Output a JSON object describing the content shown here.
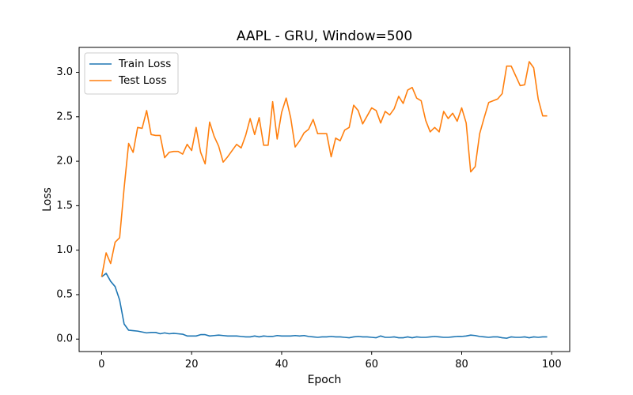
{
  "chart_data": {
    "type": "line",
    "title": "AAPL - GRU, Window=500",
    "xlabel": "Epoch",
    "ylabel": "Loss",
    "xlim": [
      -5,
      104
    ],
    "ylim": [
      -0.14,
      3.28
    ],
    "xticks": [
      0,
      20,
      40,
      60,
      80,
      100
    ],
    "yticks": [
      0.0,
      0.5,
      1.0,
      1.5,
      2.0,
      2.5,
      3.0
    ],
    "xtick_labels": [
      "0",
      "20",
      "40",
      "60",
      "80",
      "100"
    ],
    "ytick_labels": [
      "0.0",
      "0.5",
      "1.0",
      "1.5",
      "2.0",
      "2.5",
      "3.0"
    ],
    "grid": false,
    "legend_position": "top-left",
    "x": [
      0,
      1,
      2,
      3,
      4,
      5,
      6,
      7,
      8,
      9,
      10,
      11,
      12,
      13,
      14,
      15,
      16,
      17,
      18,
      19,
      20,
      21,
      22,
      23,
      24,
      25,
      26,
      27,
      28,
      29,
      30,
      31,
      32,
      33,
      34,
      35,
      36,
      37,
      38,
      39,
      40,
      41,
      42,
      43,
      44,
      45,
      46,
      47,
      48,
      49,
      50,
      51,
      52,
      53,
      54,
      55,
      56,
      57,
      58,
      59,
      60,
      61,
      62,
      63,
      64,
      65,
      66,
      67,
      68,
      69,
      70,
      71,
      72,
      73,
      74,
      75,
      76,
      77,
      78,
      79,
      80,
      81,
      82,
      83,
      84,
      85,
      86,
      87,
      88,
      89,
      90,
      91,
      92,
      93,
      94,
      95,
      96,
      97,
      98,
      99
    ],
    "series": [
      {
        "name": "Train Loss",
        "color": "#1f77b4",
        "values": [
          0.7,
          0.74,
          0.65,
          0.59,
          0.44,
          0.17,
          0.1,
          0.095,
          0.09,
          0.08,
          0.07,
          0.075,
          0.075,
          0.06,
          0.07,
          0.06,
          0.065,
          0.06,
          0.055,
          0.035,
          0.035,
          0.035,
          0.05,
          0.05,
          0.035,
          0.04,
          0.045,
          0.04,
          0.035,
          0.035,
          0.035,
          0.03,
          0.025,
          0.025,
          0.035,
          0.025,
          0.035,
          0.03,
          0.03,
          0.04,
          0.035,
          0.035,
          0.035,
          0.04,
          0.035,
          0.04,
          0.03,
          0.025,
          0.02,
          0.025,
          0.025,
          0.03,
          0.025,
          0.025,
          0.02,
          0.015,
          0.025,
          0.03,
          0.025,
          0.025,
          0.02,
          0.015,
          0.035,
          0.02,
          0.02,
          0.025,
          0.015,
          0.015,
          0.025,
          0.015,
          0.025,
          0.02,
          0.02,
          0.025,
          0.03,
          0.025,
          0.02,
          0.02,
          0.025,
          0.03,
          0.03,
          0.035,
          0.045,
          0.04,
          0.03,
          0.025,
          0.02,
          0.025,
          0.025,
          0.015,
          0.01,
          0.025,
          0.02,
          0.02,
          0.025,
          0.015,
          0.025,
          0.02,
          0.025,
          0.025
        ]
      },
      {
        "name": "Test Loss",
        "color": "#ff7f0e",
        "values": [
          0.7,
          0.97,
          0.85,
          1.09,
          1.14,
          1.7,
          2.2,
          2.1,
          2.38,
          2.37,
          2.57,
          2.3,
          2.29,
          2.29,
          2.04,
          2.1,
          2.11,
          2.11,
          2.08,
          2.19,
          2.12,
          2.38,
          2.1,
          1.97,
          2.44,
          2.28,
          2.17,
          1.99,
          2.05,
          2.12,
          2.19,
          2.15,
          2.29,
          2.48,
          2.3,
          2.49,
          2.18,
          2.18,
          2.67,
          2.25,
          2.55,
          2.71,
          2.49,
          2.16,
          2.23,
          2.32,
          2.36,
          2.47,
          2.31,
          2.31,
          2.31,
          2.05,
          2.26,
          2.23,
          2.35,
          2.38,
          2.63,
          2.57,
          2.42,
          2.51,
          2.6,
          2.57,
          2.43,
          2.56,
          2.52,
          2.59,
          2.73,
          2.65,
          2.8,
          2.83,
          2.71,
          2.68,
          2.46,
          2.33,
          2.38,
          2.33,
          2.56,
          2.48,
          2.54,
          2.45,
          2.6,
          2.43,
          1.88,
          1.94,
          2.31,
          2.49,
          2.66,
          2.68,
          2.7,
          2.76,
          3.07,
          3.07,
          2.96,
          2.85,
          2.86,
          3.12,
          3.05,
          2.7,
          2.51,
          2.51
        ]
      }
    ]
  }
}
